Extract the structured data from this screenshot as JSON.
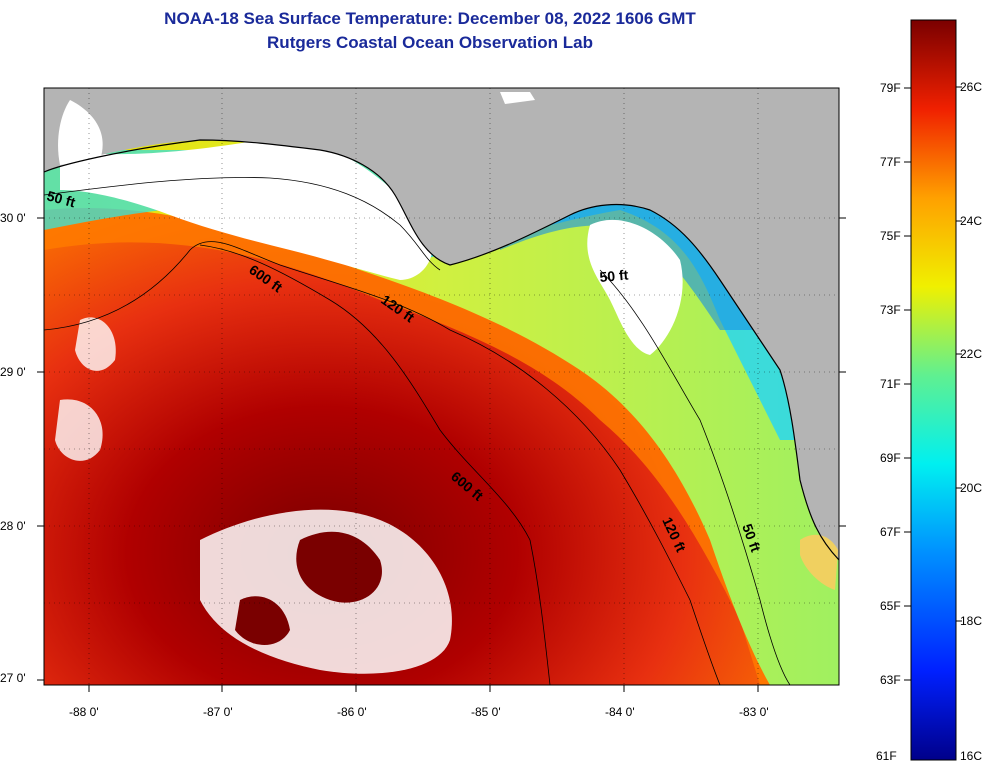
{
  "title": {
    "line1": "NOAA-18 Sea Surface Temperature:  December 08, 2022 1606 GMT",
    "line2": "Rutgers Coastal Ocean Observation Lab"
  },
  "axes": {
    "lat_labels": [
      "30 0'",
      "29 0'",
      "28 0'",
      "27 0'"
    ],
    "lon_labels": [
      "-88 0'",
      "-87 0'",
      "-86 0'",
      "-85 0'",
      "-84 0'",
      "-83 0'"
    ]
  },
  "contours": {
    "labels": [
      "50 ft",
      "600 ft",
      "120 ft",
      "50 ft",
      "600 ft",
      "120 ft",
      "50 ft"
    ]
  },
  "colorbar": {
    "f_labels": [
      "79F",
      "77F",
      "75F",
      "73F",
      "71F",
      "69F",
      "67F",
      "65F",
      "63F",
      "61F"
    ],
    "c_labels": [
      "26C",
      "24C",
      "22C",
      "20C",
      "18C",
      "16C"
    ]
  },
  "colors": {
    "land": "#b4b4b4",
    "cloud": "#ffffff",
    "title": "#1a2a9a"
  }
}
